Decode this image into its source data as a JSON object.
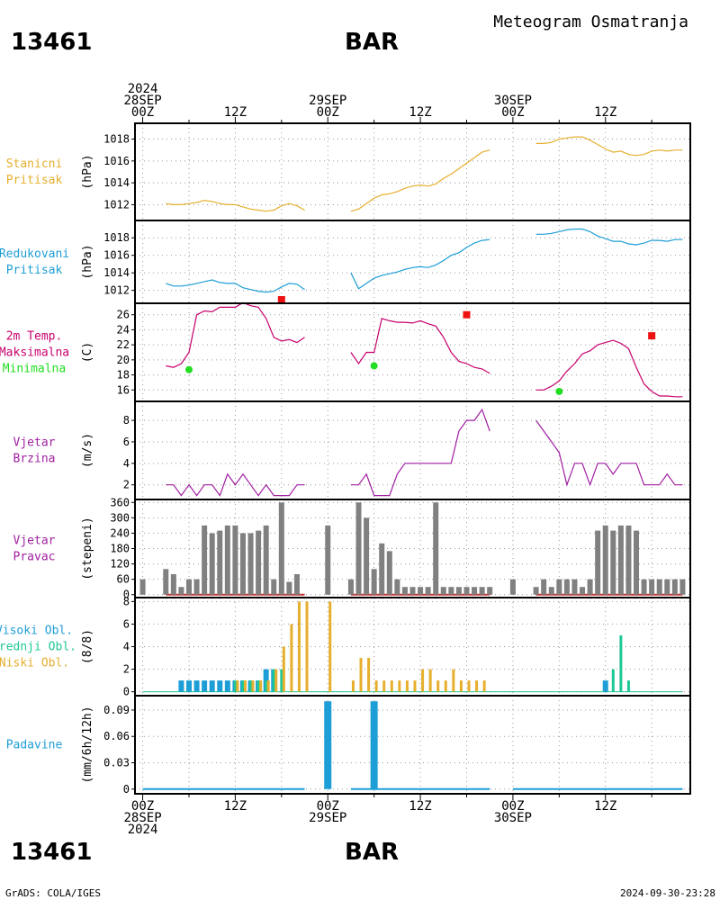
{
  "header": {
    "station_id": "13461",
    "station_name": "BAR",
    "meteogram_title": "Meteogram Osmatranja"
  },
  "footer": {
    "station_id": "13461",
    "station_name": "BAR",
    "credit": "GrADS: COLA/IGES",
    "timestamp": "2024-09-30-23:28"
  },
  "time_axis": {
    "top_labels": [
      {
        "t": 0,
        "lines": [
          "2024",
          "28SEP",
          "00Z"
        ]
      },
      {
        "t": 12,
        "lines": [
          "12Z"
        ]
      },
      {
        "t": 24,
        "lines": [
          "29SEP",
          "00Z"
        ]
      },
      {
        "t": 36,
        "lines": [
          "12Z"
        ]
      },
      {
        "t": 48,
        "lines": [
          "30SEP",
          "00Z"
        ]
      },
      {
        "t": 60,
        "lines": [
          "12Z"
        ]
      }
    ],
    "bottom_labels": [
      {
        "t": 0,
        "lines": [
          "00Z",
          "28SEP",
          "2024"
        ]
      },
      {
        "t": 12,
        "lines": [
          "12Z"
        ]
      },
      {
        "t": 24,
        "lines": [
          "00Z",
          "29SEP"
        ]
      },
      {
        "t": 36,
        "lines": [
          "12Z"
        ]
      },
      {
        "t": 48,
        "lines": [
          "00Z",
          "30SEP"
        ]
      },
      {
        "t": 60,
        "lines": [
          "12Z"
        ]
      }
    ]
  },
  "colors": {
    "pressure_station": "#e6af2e",
    "pressure_reduced": "#1e9ed6",
    "temperature": "#c8006e",
    "tmax_marker": "#ee1111",
    "tmin_marker": "#22dd22",
    "wind_speed": "#a01ea0",
    "wind_dir_bar": "#808080",
    "wind_dir_base": "#c83232",
    "cloud_high": "#1e9ed6",
    "cloud_mid": "#1ec896",
    "cloud_low": "#e6af2e",
    "precip": "#1e9ed6",
    "grid": "#999999",
    "frame": "#000000"
  },
  "chart_data": [
    {
      "type": "line",
      "labels": [
        "Stanicni",
        "Pritisak"
      ],
      "ylabel": "(hPa)",
      "yticks": [
        "1012",
        "1014",
        "1016",
        "1018"
      ],
      "ylim": [
        1011,
        1019
      ],
      "segments": [
        {
          "x": [
            3,
            4,
            5,
            6,
            7,
            8,
            9,
            10,
            11,
            12,
            13,
            14,
            15,
            16,
            17,
            18,
            19,
            20,
            21
          ],
          "y": [
            1012.1,
            1012.0,
            1012.0,
            1012.1,
            1012.2,
            1012.4,
            1012.3,
            1012.1,
            1012.0,
            1012.0,
            1011.8,
            1011.6,
            1011.5,
            1011.4,
            1011.5,
            1011.9,
            1012.1,
            1011.9,
            1011.5
          ]
        },
        {
          "x": [
            27,
            28,
            29,
            30,
            31,
            32,
            33,
            34,
            35,
            36,
            37,
            38,
            39,
            40,
            41,
            42,
            43,
            44,
            45
          ],
          "y": [
            1011.4,
            1011.6,
            1012.1,
            1012.6,
            1012.9,
            1013.0,
            1013.2,
            1013.5,
            1013.7,
            1013.8,
            1013.7,
            1013.9,
            1014.4,
            1014.8,
            1015.3,
            1015.8,
            1016.3,
            1016.8,
            1017.0
          ]
        },
        {
          "x": [
            51,
            52,
            53,
            54,
            55,
            56,
            57,
            58,
            59,
            60,
            61,
            62,
            63,
            64,
            65,
            66,
            67,
            68,
            69,
            70
          ],
          "y": [
            1017.6,
            1017.6,
            1017.7,
            1018.0,
            1018.1,
            1018.2,
            1018.2,
            1017.9,
            1017.5,
            1017.1,
            1016.8,
            1016.9,
            1016.6,
            1016.5,
            1016.6,
            1016.9,
            1017.0,
            1016.9,
            1017.0,
            1017.0
          ]
        }
      ]
    },
    {
      "type": "line",
      "labels": [
        "Redukovani",
        "Pritisak"
      ],
      "ylabel": "(hPa)",
      "yticks": [
        "1012",
        "1014",
        "1016",
        "1018"
      ],
      "ylim": [
        1011,
        1019.5
      ],
      "segments": [
        {
          "x": [
            3,
            4,
            5,
            6,
            7,
            8,
            9,
            10,
            11,
            12,
            13,
            14,
            15,
            16,
            17,
            18,
            19,
            20,
            21
          ],
          "y": [
            1012.8,
            1012.5,
            1012.5,
            1012.6,
            1012.8,
            1013.0,
            1013.2,
            1012.9,
            1012.8,
            1012.8,
            1012.3,
            1012.1,
            1011.9,
            1011.8,
            1011.9,
            1012.4,
            1012.8,
            1012.7,
            1012.1
          ]
        },
        {
          "x": [
            27,
            28,
            29,
            30,
            31,
            32,
            33,
            34,
            35,
            36,
            37,
            38,
            39,
            40,
            41,
            42,
            43,
            44,
            45
          ],
          "y": [
            1014.0,
            1012.2,
            1012.8,
            1013.4,
            1013.7,
            1013.9,
            1014.1,
            1014.4,
            1014.6,
            1014.7,
            1014.6,
            1014.9,
            1015.4,
            1016.0,
            1016.3,
            1016.9,
            1017.4,
            1017.7,
            1017.8
          ]
        },
        {
          "x": [
            51,
            52,
            53,
            54,
            55,
            56,
            57,
            58,
            59,
            60,
            61,
            62,
            63,
            64,
            65,
            66,
            67,
            68,
            69,
            70
          ],
          "y": [
            1018.4,
            1018.4,
            1018.5,
            1018.7,
            1018.9,
            1019.0,
            1019.0,
            1018.7,
            1018.2,
            1017.9,
            1017.6,
            1017.6,
            1017.3,
            1017.2,
            1017.4,
            1017.7,
            1017.7,
            1017.6,
            1017.8,
            1017.8
          ]
        }
      ]
    },
    {
      "type": "line",
      "labels": [
        "2m Temp.",
        "Maksimalna",
        "Minimalna"
      ],
      "ylabel": "(C)",
      "yticks": [
        "16",
        "18",
        "20",
        "22",
        "24",
        "26"
      ],
      "ylim": [
        15,
        27
      ],
      "segments": [
        {
          "x": [
            3,
            4,
            5,
            6,
            7,
            8,
            9,
            10,
            11,
            12,
            13,
            14,
            15,
            16,
            17,
            18,
            19,
            20,
            21
          ],
          "y": [
            19.2,
            19.0,
            19.5,
            21.0,
            26.0,
            26.5,
            26.4,
            27.0,
            27.0,
            27.0,
            27.6,
            27.2,
            27.0,
            25.5,
            23.0,
            22.5,
            22.7,
            22.3,
            23.0
          ]
        },
        {
          "x": [
            27,
            28,
            29,
            30,
            31,
            32,
            33,
            34,
            35,
            36,
            37,
            38,
            39,
            40,
            41,
            42,
            43,
            44,
            45
          ],
          "y": [
            21.0,
            19.5,
            21.0,
            21.0,
            25.5,
            25.2,
            25.0,
            25.0,
            24.9,
            25.2,
            24.8,
            24.5,
            23.0,
            21.0,
            19.8,
            19.5,
            19.0,
            18.8,
            18.2
          ]
        },
        {
          "x": [
            51,
            52,
            53,
            54,
            55,
            56,
            57,
            58,
            59,
            60,
            61,
            62,
            63,
            64,
            65,
            66,
            67,
            68,
            69,
            70
          ],
          "y": [
            16.0,
            16.0,
            16.5,
            17.2,
            18.5,
            19.5,
            20.8,
            21.2,
            22.0,
            22.3,
            22.6,
            22.2,
            21.5,
            19.0,
            16.8,
            15.8,
            15.2,
            15.2,
            15.1,
            15.1
          ]
        }
      ],
      "tmax": [
        {
          "x": 18,
          "y": 28.0
        },
        {
          "x": 42,
          "y": 26.0
        },
        {
          "x": 66,
          "y": 23.2
        }
      ],
      "tmin": [
        {
          "x": 6,
          "y": 18.7
        },
        {
          "x": 30,
          "y": 19.2
        },
        {
          "x": 54,
          "y": 15.8
        }
      ]
    },
    {
      "type": "line",
      "labels": [
        "Vjetar",
        "Brzina"
      ],
      "ylabel": "(m/s)",
      "yticks": [
        "2",
        "4",
        "6",
        "8"
      ],
      "ylim": [
        1,
        9.4
      ],
      "segments": [
        {
          "x": [
            3,
            4,
            5,
            6,
            7,
            8,
            9,
            10,
            11,
            12,
            13,
            14,
            15,
            16,
            17,
            18,
            19,
            20,
            21
          ],
          "y": [
            2,
            2,
            1,
            2,
            1,
            2,
            2,
            1,
            3,
            2,
            3,
            2,
            1,
            2,
            1,
            1,
            1,
            2,
            2
          ]
        },
        {
          "x": [
            27,
            28,
            29,
            30,
            31,
            32,
            33,
            34,
            35,
            36,
            37,
            38,
            39,
            40,
            41,
            42,
            43,
            44,
            45
          ],
          "y": [
            2,
            2,
            3,
            1,
            1,
            1,
            3,
            4,
            4,
            4,
            4,
            4,
            4,
            4,
            7,
            8,
            8,
            9,
            7
          ]
        },
        {
          "x": [
            51,
            52,
            53,
            54,
            55,
            56,
            57,
            58,
            59,
            60,
            61,
            62,
            63,
            64,
            65,
            66,
            67,
            68,
            69,
            70
          ],
          "y": [
            8,
            7,
            6,
            5,
            2,
            4,
            4,
            2,
            4,
            4,
            3,
            4,
            4,
            4,
            2,
            2,
            2,
            3,
            2,
            2
          ]
        }
      ]
    },
    {
      "type": "bar",
      "labels": [
        "Vjetar",
        "Pravac"
      ],
      "ylabel": "(stepeni)",
      "yticks": [
        "0",
        "60",
        "120",
        "180",
        "240",
        "300",
        "360"
      ],
      "ylim": [
        0,
        360
      ],
      "x": [
        0,
        3,
        4,
        5,
        6,
        7,
        8,
        9,
        10,
        11,
        12,
        13,
        14,
        15,
        16,
        17,
        18,
        19,
        20,
        24,
        27,
        28,
        29,
        30,
        31,
        32,
        33,
        34,
        35,
        36,
        37,
        38,
        39,
        40,
        41,
        42,
        43,
        44,
        45,
        48,
        51,
        52,
        53,
        54,
        55,
        56,
        57,
        58,
        59,
        60,
        61,
        62,
        63,
        64,
        65,
        66,
        67,
        68,
        69,
        70
      ],
      "values": [
        60,
        100,
        80,
        30,
        60,
        60,
        270,
        240,
        250,
        270,
        270,
        240,
        240,
        250,
        270,
        60,
        360,
        50,
        80,
        270,
        60,
        360,
        300,
        100,
        200,
        170,
        60,
        30,
        30,
        30,
        30,
        360,
        30,
        30,
        30,
        30,
        30,
        30,
        30,
        60,
        30,
        60,
        30,
        60,
        60,
        60,
        30,
        60,
        250,
        270,
        250,
        270,
        270,
        250,
        60,
        60,
        60,
        60,
        60,
        60
      ],
      "calm_from": [
        3,
        27,
        51
      ],
      "calm_to": [
        21,
        45,
        70
      ]
    },
    {
      "type": "bar",
      "labels": [
        "Visoki Obl.",
        "Srednji Obl.",
        "Niski Obl."
      ],
      "ylabel": "(8/8)",
      "yticks": [
        "0",
        "2",
        "4",
        "6",
        "8"
      ],
      "ylim": [
        0,
        8
      ],
      "series": [
        {
          "name": "Visoki Obl.",
          "x": [
            5,
            6,
            7,
            8,
            9,
            10,
            11,
            12,
            13,
            14,
            15,
            16,
            17,
            60
          ],
          "values": [
            1,
            1,
            1,
            1,
            1,
            1,
            1,
            1,
            1,
            1,
            1,
            2,
            2,
            1
          ]
        },
        {
          "name": "Srednji Obl.",
          "x": [
            12,
            13,
            14,
            15,
            16,
            17,
            18,
            61,
            62,
            63
          ],
          "values": [
            1,
            1,
            1,
            1,
            1,
            2,
            2,
            2,
            5,
            1
          ]
        },
        {
          "name": "Niski Obl.",
          "x": [
            12,
            13,
            14,
            15,
            16,
            17,
            18,
            19,
            20,
            21,
            24,
            27,
            28,
            29,
            30,
            31,
            32,
            33,
            34,
            35,
            36,
            37,
            38,
            39,
            40,
            41,
            42,
            43,
            44
          ],
          "values": [
            1,
            1,
            1,
            1,
            1,
            2,
            4,
            6,
            8,
            8,
            8,
            1,
            3,
            3,
            1,
            1,
            1,
            1,
            1,
            1,
            2,
            2,
            1,
            1,
            2,
            1,
            1,
            1,
            1
          ]
        }
      ]
    },
    {
      "type": "bar",
      "labels": [
        "Padavine"
      ],
      "ylabel": "(mm/6h/12h)",
      "yticks": [
        "0",
        "0.03",
        "0.06",
        "0.09"
      ],
      "ylim": [
        -0.002,
        0.103
      ],
      "x": [
        24,
        30
      ],
      "values": [
        0.1,
        0.1
      ],
      "baseline_from": [
        0,
        27,
        48
      ],
      "baseline_to": [
        21,
        45,
        70
      ]
    }
  ]
}
